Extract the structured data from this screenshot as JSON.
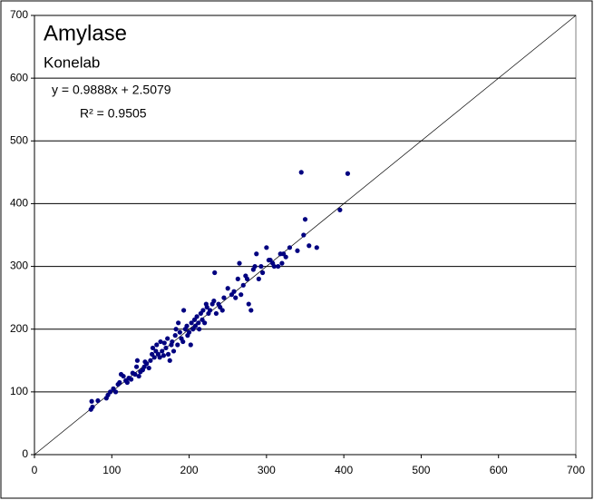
{
  "chart_data": {
    "type": "scatter",
    "title": "Amylase",
    "subtitle": "Konelab",
    "annotations": [
      "y = 0.9888x + 2.5079",
      "R² = 0.9505"
    ],
    "color": "#000080",
    "grid": true,
    "xlim": [
      0,
      700
    ],
    "ylim": [
      0,
      700
    ],
    "xticks": [
      0,
      100,
      200,
      300,
      400,
      500,
      600,
      700
    ],
    "yticks": [
      0,
      100,
      200,
      300,
      400,
      500,
      600,
      700
    ],
    "x": [
      73,
      75,
      74,
      82,
      93,
      95,
      98,
      102,
      105,
      108,
      110,
      112,
      115,
      118,
      120,
      122,
      125,
      127,
      130,
      132,
      133,
      135,
      137,
      140,
      142,
      143,
      145,
      148,
      150,
      152,
      153,
      155,
      157,
      158,
      160,
      162,
      163,
      165,
      167,
      168,
      170,
      172,
      173,
      175,
      177,
      178,
      180,
      182,
      183,
      185,
      186,
      188,
      190,
      192,
      193,
      195,
      197,
      198,
      200,
      202,
      203,
      205,
      207,
      208,
      210,
      212,
      213,
      215,
      217,
      218,
      220,
      222,
      223,
      225,
      227,
      230,
      232,
      233,
      235,
      238,
      240,
      243,
      245,
      250,
      255,
      258,
      260,
      263,
      265,
      267,
      270,
      273,
      275,
      277,
      280,
      283,
      285,
      287,
      290,
      293,
      295,
      300,
      303,
      305,
      308,
      310,
      315,
      318,
      320,
      322,
      325,
      330,
      340,
      345,
      348,
      350,
      355,
      365,
      395,
      405
    ],
    "values": [
      72,
      76,
      85,
      86,
      90,
      95,
      100,
      105,
      100,
      112,
      115,
      128,
      125,
      118,
      115,
      122,
      120,
      130,
      128,
      140,
      150,
      125,
      132,
      135,
      140,
      148,
      145,
      138,
      150,
      160,
      170,
      155,
      165,
      175,
      160,
      155,
      180,
      165,
      158,
      178,
      170,
      185,
      160,
      150,
      175,
      180,
      165,
      190,
      200,
      175,
      210,
      195,
      185,
      180,
      230,
      200,
      205,
      190,
      195,
      175,
      210,
      200,
      215,
      205,
      220,
      210,
      200,
      225,
      215,
      230,
      210,
      240,
      235,
      225,
      230,
      240,
      245,
      290,
      225,
      240,
      235,
      230,
      250,
      265,
      255,
      260,
      250,
      280,
      305,
      255,
      270,
      285,
      280,
      240,
      230,
      295,
      300,
      320,
      280,
      300,
      290,
      330,
      310,
      310,
      305,
      300,
      300,
      320,
      305,
      320,
      315,
      330,
      325,
      450,
      350,
      375,
      333,
      330,
      390,
      448
    ]
  }
}
